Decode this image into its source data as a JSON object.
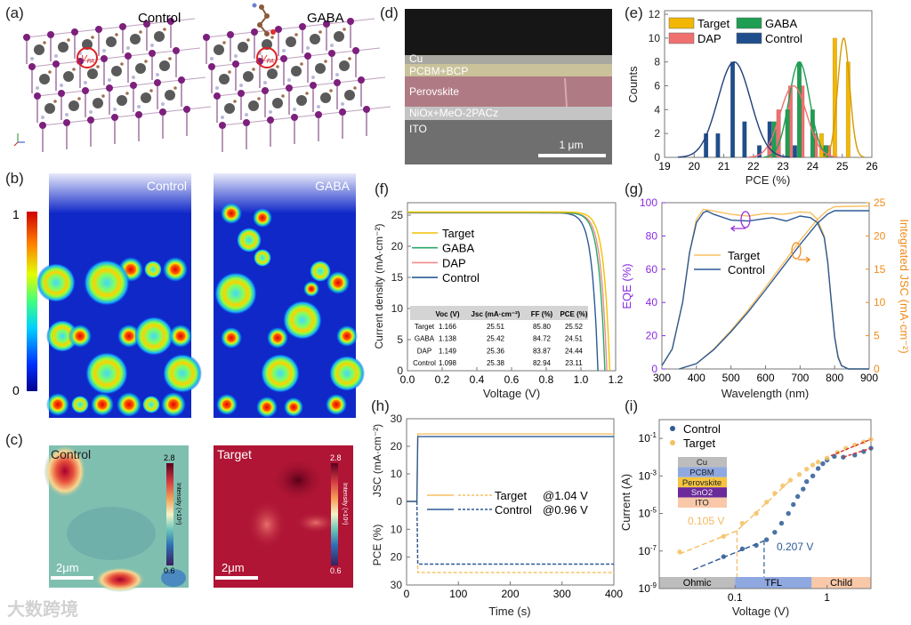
{
  "panel_labels": {
    "a": "(a)",
    "b": "(b)",
    "c": "(c)",
    "d": "(d)",
    "e": "(e)",
    "f": "(f)",
    "g": "(g)",
    "h": "(h)",
    "i": "(i)"
  },
  "panel_a": {
    "left_title": "Control",
    "right_title": "GABA",
    "vacancy_main": "V",
    "vacancy_sub": "FA"
  },
  "panel_b": {
    "left_title": "Control",
    "right_title": "GABA",
    "colorbar_max": "1",
    "colorbar_min": "0"
  },
  "panel_c": {
    "left_title": "Control",
    "right_title": "Target",
    "colorbar_max": "2.8",
    "colorbar_min": "0.6",
    "colorbar_title": "Intensity (×10⁶)",
    "scale_bar": "2μm"
  },
  "panel_d": {
    "layers": [
      "Cu",
      "PCBM+BCP",
      "Perovskite",
      "NiOx+MeO-2PACz",
      "ITO"
    ],
    "scale_bar": "1 μm"
  },
  "watermark": "大数跨境",
  "chart_data": [
    {
      "panel": "e",
      "type": "bar",
      "xlabel": "PCE (%)",
      "ylabel": "Counts",
      "xlim": [
        19,
        26
      ],
      "ylim": [
        0,
        12
      ],
      "xticks": [
        19,
        20,
        21,
        22,
        23,
        24,
        25,
        26
      ],
      "yticks": [
        0,
        2,
        4,
        6,
        8,
        10,
        12
      ],
      "legend": "top-left",
      "series": [
        {
          "name": "Target",
          "color": "#f2b705",
          "bins": [
            [
              24.3,
              2
            ],
            [
              24.75,
              10
            ],
            [
              25.2,
              8
            ]
          ],
          "fit": {
            "mean": 25.05,
            "sd": 0.2,
            "peak": 10
          },
          "fit_color": "#d49a00"
        },
        {
          "name": "GABA",
          "color": "#1e9e52",
          "bins": [
            [
              22.7,
              3
            ],
            [
              23.15,
              4
            ],
            [
              23.55,
              8
            ],
            [
              24.0,
              4
            ],
            [
              24.45,
              1
            ]
          ],
          "fit": {
            "mean": 23.55,
            "sd": 0.35,
            "peak": 8
          },
          "fit_color": "#1e9e52"
        },
        {
          "name": "DAP",
          "color": "#f07070",
          "bins": [
            [
              22.55,
              1
            ],
            [
              22.85,
              4
            ],
            [
              23.25,
              6
            ],
            [
              23.65,
              6
            ],
            [
              24.1,
              2
            ],
            [
              24.55,
              1
            ]
          ],
          "fit": {
            "mean": 23.35,
            "sd": 0.45,
            "peak": 6
          },
          "fit_color": "#f07070"
        },
        {
          "name": "Control",
          "color": "#1f4e8c",
          "bins": [
            [
              20.4,
              2
            ],
            [
              20.8,
              2
            ],
            [
              21.3,
              8
            ],
            [
              21.7,
              3
            ],
            [
              22.2,
              1
            ],
            [
              22.55,
              3
            ],
            [
              23.4,
              1
            ],
            [
              24.4,
              1
            ]
          ],
          "fit": {
            "mean": 21.35,
            "sd": 0.55,
            "peak": 8
          },
          "fit_color": "#1f3f7a"
        }
      ]
    },
    {
      "panel": "f",
      "type": "line",
      "xlabel": "Voltage (V)",
      "ylabel": "Current density (mA·cm⁻²)",
      "xlim": [
        0,
        1.2
      ],
      "ylim": [
        0,
        27
      ],
      "xticks": [
        "0.0",
        "0.2",
        "0.4",
        "0.6",
        "0.8",
        "1.0",
        "1.2"
      ],
      "yticks": [
        0,
        5,
        10,
        15,
        20,
        25
      ],
      "legend": "top-left",
      "table": {
        "headers": [
          "",
          "Voc (V)",
          "Jsc (mA·cm⁻²)",
          "FF (%)",
          "PCE (%)"
        ],
        "rows": [
          [
            "Target",
            "1.166",
            "25.51",
            "85.80",
            "25.52"
          ],
          [
            "GABA",
            "1.138",
            "25.42",
            "84.72",
            "24.51"
          ],
          [
            "DAP",
            "1.149",
            "25.36",
            "83.87",
            "24.44"
          ],
          [
            "Control",
            "1.098",
            "25.38",
            "82.94",
            "23.11"
          ]
        ]
      },
      "series": [
        {
          "name": "Target",
          "color": "#f2c200",
          "voc": 1.166,
          "jsc": 25.51
        },
        {
          "name": "GABA",
          "color": "#2aa86a",
          "voc": 1.138,
          "jsc": 25.42
        },
        {
          "name": "DAP",
          "color": "#f08a8a",
          "voc": 1.149,
          "jsc": 25.36
        },
        {
          "name": "Control",
          "color": "#2c5a95",
          "voc": 1.098,
          "jsc": 25.38
        }
      ]
    },
    {
      "panel": "g",
      "type": "line",
      "xlabel": "Wavelength (nm)",
      "ylabel": "EQE (%)",
      "y2label": "Integrated JSC (mA·cm⁻²)",
      "xlim": [
        300,
        900
      ],
      "ylim": [
        0,
        100
      ],
      "y2lim": [
        0,
        25
      ],
      "xticks": [
        300,
        400,
        500,
        600,
        700,
        800,
        900
      ],
      "yticks": [
        0,
        20,
        40,
        60,
        80,
        100
      ],
      "y2ticks": [
        0,
        5,
        10,
        15,
        20,
        25
      ],
      "legend": "center-left",
      "series": [
        {
          "name": "Target",
          "color": "#f8c060",
          "eqe": [
            [
              300,
              2
            ],
            [
              330,
              12
            ],
            [
              360,
              40
            ],
            [
              380,
              70
            ],
            [
              400,
              90
            ],
            [
              420,
              96
            ],
            [
              450,
              95
            ],
            [
              500,
              93
            ],
            [
              550,
              92
            ],
            [
              600,
              93.5
            ],
            [
              650,
              93
            ],
            [
              700,
              94.5
            ],
            [
              730,
              94
            ],
            [
              750,
              90
            ],
            [
              770,
              80
            ],
            [
              780,
              65
            ],
            [
              790,
              42
            ],
            [
              800,
              20
            ],
            [
              810,
              8
            ],
            [
              820,
              2
            ],
            [
              840,
              0
            ],
            [
              900,
              0
            ]
          ],
          "jsc": [
            [
              350,
              0
            ],
            [
              400,
              0.8
            ],
            [
              450,
              3
            ],
            [
              500,
              5.8
            ],
            [
              550,
              8.9
            ],
            [
              600,
              12.3
            ],
            [
              650,
              15.8
            ],
            [
              700,
              19.3
            ],
            [
              750,
              22.5
            ],
            [
              780,
              23.9
            ],
            [
              800,
              24.4
            ],
            [
              900,
              24.5
            ]
          ]
        },
        {
          "name": "Control",
          "color": "#2c5a95",
          "eqe": [
            [
              300,
              2
            ],
            [
              330,
              12
            ],
            [
              360,
              40
            ],
            [
              380,
              70
            ],
            [
              400,
              88
            ],
            [
              420,
              94
            ],
            [
              430,
              95
            ],
            [
              450,
              93
            ],
            [
              500,
              89.5
            ],
            [
              550,
              89
            ],
            [
              600,
              90.5
            ],
            [
              620,
              91
            ],
            [
              660,
              89
            ],
            [
              700,
              92
            ],
            [
              730,
              91
            ],
            [
              750,
              88
            ],
            [
              770,
              79
            ],
            [
              780,
              64
            ],
            [
              790,
              41
            ],
            [
              800,
              19
            ],
            [
              810,
              7
            ],
            [
              820,
              2
            ],
            [
              840,
              0
            ],
            [
              900,
              0
            ]
          ],
          "jsc": [
            [
              350,
              0
            ],
            [
              400,
              0.8
            ],
            [
              450,
              2.9
            ],
            [
              500,
              5.6
            ],
            [
              550,
              8.6
            ],
            [
              600,
              11.9
            ],
            [
              650,
              15.3
            ],
            [
              700,
              18.7
            ],
            [
              750,
              21.9
            ],
            [
              780,
              23.3
            ],
            [
              800,
              23.8
            ],
            [
              900,
              23.8
            ]
          ]
        }
      ]
    },
    {
      "panel": "h",
      "type": "line",
      "xlabel": "Time (s)",
      "ylabel_top": "JSC (mA·cm⁻²)",
      "ylabel_bottom": "PCE (%)",
      "xlim": [
        0,
        400
      ],
      "ylim_top": [
        0,
        30
      ],
      "ylim_bottom": [
        0,
        30
      ],
      "xticks": [
        0,
        100,
        200,
        300,
        400
      ],
      "yticks": [
        30,
        20,
        10,
        0,
        10,
        20,
        30
      ],
      "legend": "center",
      "series": [
        {
          "name": "Target",
          "bias": "@1.04 V",
          "color": "#f5c060",
          "jsc": 24.5,
          "pce": 25.5,
          "t_on": 20
        },
        {
          "name": "Control",
          "bias": "@0.96 V",
          "color": "#2c5a95",
          "jsc": 23.5,
          "pce": 22.5,
          "t_on": 20
        }
      ]
    },
    {
      "panel": "i",
      "type": "scatter",
      "xlabel": "Voltage (V)",
      "ylabel": "Current (A)",
      "xscale": "log",
      "yscale": "log",
      "xlim": [
        0.015,
        3
      ],
      "ylim": [
        1e-09,
        1
      ],
      "xticks": [
        {
          "v": 0.1,
          "label": "0.1"
        },
        {
          "v": 1,
          "label": "1"
        }
      ],
      "yticks": [
        {
          "v": 1e-09,
          "exp": "-9"
        },
        {
          "v": 1e-07,
          "exp": "-7"
        },
        {
          "v": 1e-05,
          "exp": "-5"
        },
        {
          "v": 0.001,
          "exp": "-3"
        },
        {
          "v": 0.1,
          "exp": "-1"
        }
      ],
      "legend": "top-left",
      "regions": [
        {
          "label": "Ohmic",
          "from": 0.015,
          "to": 0.1,
          "color": "#bdbdbd"
        },
        {
          "label": "TFL",
          "from": 0.1,
          "to": 0.68,
          "color": "#8fa8e0"
        },
        {
          "label": "Child",
          "from": 0.68,
          "to": 3,
          "color": "#f8c8a8"
        }
      ],
      "annotations": [
        {
          "text": "0.105 V",
          "v": 0.105,
          "color": "#f5b860"
        },
        {
          "text": "0.207 V",
          "v": 0.207,
          "color": "#2c5a95"
        }
      ],
      "inset_layers": [
        {
          "label": "Cu",
          "color": "#bdbdbd"
        },
        {
          "label": "PCBM",
          "color": "#8fa8e0"
        },
        {
          "label": "Perovskite",
          "color": "#f5c542"
        },
        {
          "label": "SnO2",
          "color": "#6a2a9a"
        },
        {
          "label": "ITO",
          "color": "#f8c8a8"
        }
      ],
      "series": [
        {
          "name": "Control",
          "color": "#2c5a95",
          "points": [
            [
              0.075,
              5e-08
            ],
            [
              0.12,
              1.3e-07
            ],
            [
              0.17,
              2e-07
            ],
            [
              0.22,
              4e-07
            ],
            [
              0.27,
              1e-06
            ],
            [
              0.32,
              3e-06
            ],
            [
              0.38,
              1e-05
            ],
            [
              0.43,
              3e-05
            ],
            [
              0.48,
              8e-05
            ],
            [
              0.55,
              0.0002
            ],
            [
              0.6,
              0.0005
            ],
            [
              0.7,
              0.001
            ],
            [
              0.8,
              0.0025
            ],
            [
              0.9,
              0.0045
            ],
            [
              1.0,
              0.007
            ],
            [
              1.2,
              0.011
            ],
            [
              1.5,
              0.01
            ],
            [
              2.0,
              0.013
            ],
            [
              2.5,
              0.02
            ],
            [
              3.0,
              0.03
            ]
          ]
        },
        {
          "name": "Target",
          "color": "#f5c060",
          "points": [
            [
              0.025,
              9e-08
            ],
            [
              0.075,
              6e-07
            ],
            [
              0.12,
              3e-06
            ],
            [
              0.17,
              1e-05
            ],
            [
              0.22,
              4e-05
            ],
            [
              0.27,
              0.00012
            ],
            [
              0.33,
              0.0003
            ],
            [
              0.4,
              0.0006
            ],
            [
              0.5,
              0.0012
            ],
            [
              0.6,
              0.0023
            ],
            [
              0.7,
              0.0038
            ],
            [
              0.8,
              0.0055
            ],
            [
              1.0,
              0.009
            ],
            [
              1.3,
              0.018
            ],
            [
              1.6,
              0.03
            ],
            [
              2.0,
              0.045
            ],
            [
              2.5,
              0.065
            ],
            [
              3.0,
              0.09
            ]
          ]
        }
      ]
    }
  ]
}
